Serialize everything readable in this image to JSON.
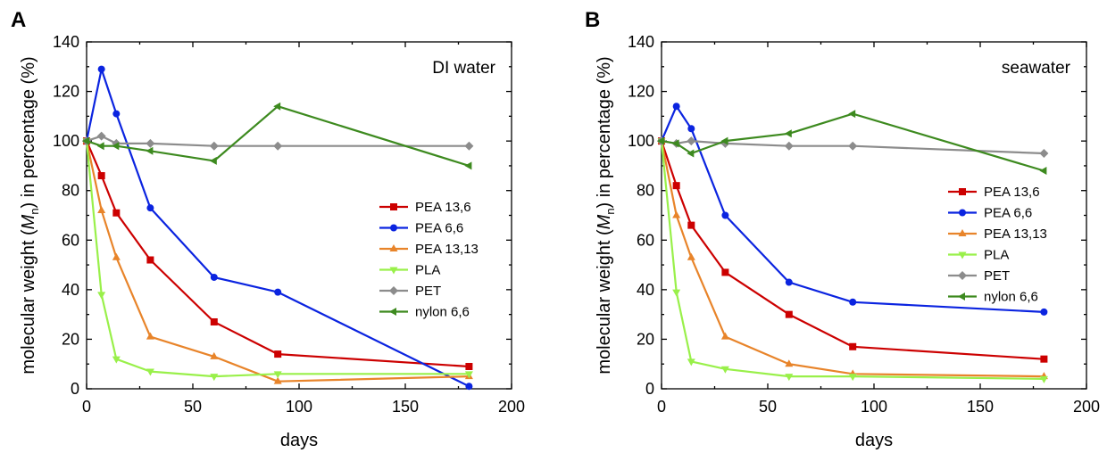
{
  "chart_data": [
    {
      "type": "line",
      "panel": "A",
      "annotation": "DI water",
      "xlabel": "days",
      "ylabel_prefix": "molecular weight (",
      "ylabel_var": "M",
      "ylabel_sub": "n",
      "ylabel_suffix": ") in percentage (%)",
      "xlim": [
        0,
        200
      ],
      "ylim": [
        0,
        140
      ],
      "xticks": [
        0,
        50,
        100,
        150,
        200
      ],
      "yticks": [
        0,
        20,
        40,
        60,
        80,
        100,
        120,
        140
      ],
      "grid": false,
      "legend_position": "center-right",
      "series": [
        {
          "name": "PEA 13,6",
          "color": "#cc0000",
          "marker": "square",
          "x": [
            0,
            7,
            14,
            30,
            60,
            90,
            180
          ],
          "y": [
            100,
            86,
            71,
            52,
            27,
            14,
            9
          ]
        },
        {
          "name": "PEA 6,6",
          "color": "#0b24e0",
          "marker": "circle",
          "x": [
            0,
            7,
            14,
            30,
            60,
            90,
            180
          ],
          "y": [
            100,
            129,
            111,
            73,
            45,
            39,
            1
          ]
        },
        {
          "name": "PEA 13,13",
          "color": "#e8842a",
          "marker": "triangle-up",
          "x": [
            0,
            7,
            14,
            30,
            60,
            90,
            180
          ],
          "y": [
            100,
            72,
            53,
            21,
            13,
            3,
            5
          ]
        },
        {
          "name": "PLA",
          "color": "#99f04a",
          "marker": "triangle-down",
          "x": [
            0,
            7,
            14,
            30,
            60,
            90,
            180
          ],
          "y": [
            100,
            38,
            12,
            7,
            5,
            6,
            6
          ]
        },
        {
          "name": "PET",
          "color": "#8c8c8c",
          "marker": "diamond",
          "x": [
            0,
            7,
            14,
            30,
            60,
            90,
            180
          ],
          "y": [
            100,
            102,
            99,
            99,
            98,
            98,
            98
          ]
        },
        {
          "name": "nylon 6,6",
          "color": "#3d8a1f",
          "marker": "triangle-left",
          "x": [
            0,
            7,
            14,
            30,
            60,
            90,
            180
          ],
          "y": [
            100,
            98,
            98,
            96,
            92,
            114,
            90
          ]
        }
      ]
    },
    {
      "type": "line",
      "panel": "B",
      "annotation": "seawater",
      "xlabel": "days",
      "ylabel_prefix": "molecular weight (",
      "ylabel_var": "M",
      "ylabel_sub": "n",
      "ylabel_suffix": ") in percentage (%)",
      "xlim": [
        0,
        200
      ],
      "ylim": [
        0,
        140
      ],
      "xticks": [
        0,
        50,
        100,
        150,
        200
      ],
      "yticks": [
        0,
        20,
        40,
        60,
        80,
        100,
        120,
        140
      ],
      "grid": false,
      "legend_position": "center-right",
      "series": [
        {
          "name": "PEA 13,6",
          "color": "#cc0000",
          "marker": "square",
          "x": [
            0,
            7,
            14,
            30,
            60,
            90,
            180
          ],
          "y": [
            100,
            82,
            66,
            47,
            30,
            17,
            12
          ]
        },
        {
          "name": "PEA 6,6",
          "color": "#0b24e0",
          "marker": "circle",
          "x": [
            0,
            7,
            14,
            30,
            60,
            90,
            180
          ],
          "y": [
            100,
            114,
            105,
            70,
            43,
            35,
            31
          ]
        },
        {
          "name": "PEA 13,13",
          "color": "#e8842a",
          "marker": "triangle-up",
          "x": [
            0,
            7,
            14,
            30,
            60,
            90,
            180
          ],
          "y": [
            100,
            70,
            53,
            21,
            10,
            6,
            5
          ]
        },
        {
          "name": "PLA",
          "color": "#99f04a",
          "marker": "triangle-down",
          "x": [
            0,
            7,
            14,
            30,
            60,
            90,
            180
          ],
          "y": [
            100,
            39,
            11,
            8,
            5,
            5,
            4
          ]
        },
        {
          "name": "PET",
          "color": "#8c8c8c",
          "marker": "diamond",
          "x": [
            0,
            7,
            14,
            30,
            60,
            90,
            180
          ],
          "y": [
            100,
            99,
            100,
            99,
            98,
            98,
            95
          ]
        },
        {
          "name": "nylon 6,6",
          "color": "#3d8a1f",
          "marker": "triangle-left",
          "x": [
            0,
            7,
            14,
            30,
            60,
            90,
            180
          ],
          "y": [
            100,
            99,
            95,
            100,
            103,
            111,
            88
          ]
        }
      ]
    }
  ]
}
